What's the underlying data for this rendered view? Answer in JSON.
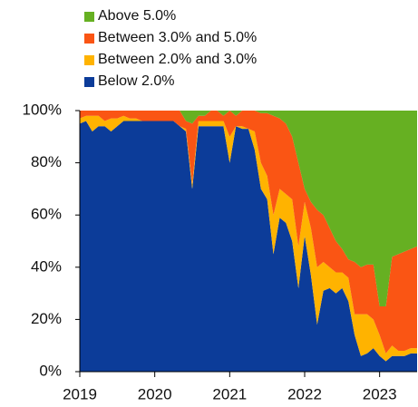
{
  "chart_data": {
    "type": "stacked_area",
    "categories": [
      "2019",
      null,
      null,
      null,
      null,
      null,
      null,
      null,
      null,
      null,
      null,
      null,
      "2020",
      null,
      null,
      null,
      null,
      null,
      null,
      null,
      null,
      null,
      null,
      null,
      "2021",
      null,
      null,
      null,
      null,
      null,
      null,
      null,
      null,
      null,
      null,
      null,
      "2022",
      null,
      null,
      null,
      null,
      null,
      null,
      null,
      null,
      null,
      null,
      null,
      "2023",
      null,
      null,
      null,
      null,
      null,
      null
    ],
    "series": [
      {
        "name": "Above 5.0%",
        "color": "#66b022",
        "values": [
          0,
          0,
          0,
          0,
          0,
          0,
          0,
          0,
          0,
          0,
          0,
          0,
          0,
          0,
          0,
          0,
          0,
          4,
          5,
          2,
          2,
          0,
          0,
          2,
          0,
          2,
          0,
          0,
          0,
          1,
          1,
          2,
          3,
          5,
          10,
          20,
          30,
          35,
          38,
          40,
          45,
          50,
          53,
          57,
          58,
          60,
          59,
          59,
          75,
          75,
          56,
          55,
          54,
          53,
          52
        ]
      },
      {
        "name": "Between 3.0% and 5.0%",
        "color": "#fa5514",
        "values": [
          3,
          2,
          2,
          2,
          4,
          3,
          3,
          2,
          3,
          3,
          4,
          4,
          4,
          4,
          4,
          4,
          6,
          3,
          23,
          2,
          2,
          4,
          4,
          2,
          10,
          4,
          6,
          7,
          8,
          19,
          24,
          38,
          27,
          27,
          24,
          32,
          5,
          10,
          22,
          18,
          15,
          12,
          9,
          7,
          20,
          18,
          19,
          21,
          11,
          18,
          34,
          37,
          38,
          38,
          39
        ]
      },
      {
        "name": "Between 2.0% and 3.0%",
        "color": "#ffb300",
        "values": [
          2,
          2,
          6,
          4,
          2,
          5,
          3,
          2,
          1,
          1,
          0,
          0,
          0,
          0,
          0,
          0,
          0,
          1,
          2,
          2,
          2,
          2,
          2,
          2,
          10,
          0,
          1,
          0,
          7,
          10,
          9,
          15,
          11,
          11,
          16,
          16,
          13,
          18,
          22,
          11,
          8,
          8,
          6,
          9,
          8,
          16,
          15,
          11,
          8,
          3,
          4,
          2,
          2,
          2,
          2
        ]
      },
      {
        "name": "Below 2.0%",
        "color": "#0c3c99",
        "values": [
          95,
          96,
          92,
          94,
          94,
          92,
          94,
          96,
          96,
          96,
          96,
          96,
          96,
          96,
          96,
          96,
          94,
          92,
          70,
          94,
          94,
          94,
          94,
          94,
          80,
          94,
          93,
          93,
          85,
          70,
          66,
          45,
          59,
          57,
          50,
          32,
          52,
          37,
          18,
          31,
          32,
          30,
          32,
          27,
          14,
          6,
          7,
          9,
          6,
          4,
          6,
          6,
          6,
          7,
          7
        ]
      }
    ],
    "ylim": [
      0,
      100
    ],
    "yticks": [
      {
        "value": 0,
        "label": "0%"
      },
      {
        "value": 20,
        "label": "20%"
      },
      {
        "value": 40,
        "label": "40%"
      },
      {
        "value": 60,
        "label": "60%"
      },
      {
        "value": 80,
        "label": "80%"
      },
      {
        "value": 100,
        "label": "100%"
      }
    ],
    "legend": "top-left"
  }
}
